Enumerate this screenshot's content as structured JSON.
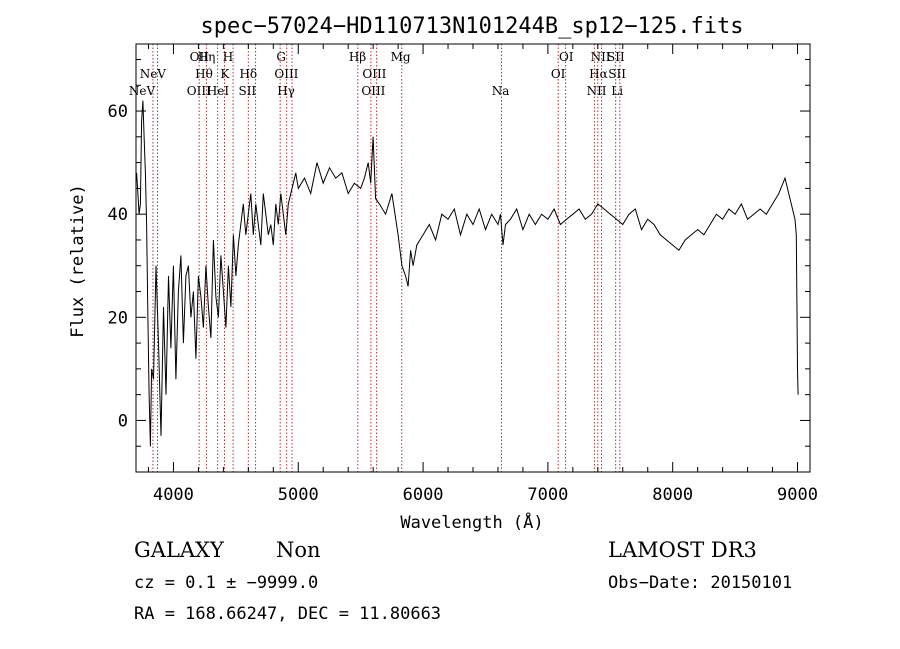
{
  "chart_data": {
    "type": "line",
    "title": "spec−57024−HD110713N101244B_sp12−125.fits",
    "xlabel": "Wavelength (Å)",
    "ylabel": "Flux (relative)",
    "xlim": [
      3700,
      9100
    ],
    "ylim": [
      -10,
      73
    ],
    "x_ticks": [
      4000,
      5000,
      6000,
      7000,
      8000,
      9000
    ],
    "y_ticks": [
      0,
      20,
      40,
      60
    ],
    "grid": false,
    "line_color": "#000000",
    "marker_color": "#b03030",
    "spectral_lines": [
      {
        "label": "NeV",
        "x": 3426,
        "row": 2
      },
      {
        "label": "NeV",
        "x": 3835,
        "row": 1
      },
      {
        "label": "OII",
        "x": 4207,
        "row": 0
      },
      {
        "label": "Hη",
        "x": 4265,
        "row": 0
      },
      {
        "label": "H",
        "x": 4437,
        "row": 0
      },
      {
        "label": "Hθ",
        "x": 4245,
        "row": 1
      },
      {
        "label": "K",
        "x": 4412,
        "row": 1
      },
      {
        "label": "OIII",
        "x": 4203,
        "row": 2
      },
      {
        "label": "HeI",
        "x": 4357,
        "row": 2
      },
      {
        "label": "Hδ",
        "x": 4600,
        "row": 1
      },
      {
        "label": "SII",
        "x": 4592,
        "row": 2
      },
      {
        "label": "G",
        "x": 4863,
        "row": 0
      },
      {
        "label": "OIII",
        "x": 4905,
        "row": 1
      },
      {
        "label": "Hγ",
        "x": 4902,
        "row": 2
      },
      {
        "label": "Hβ",
        "x": 5475,
        "row": 0
      },
      {
        "label": "OIII",
        "x": 5610,
        "row": 1
      },
      {
        "label": "OIII",
        "x": 5602,
        "row": 2
      },
      {
        "label": "Mg",
        "x": 5820,
        "row": 0
      },
      {
        "label": "Na",
        "x": 6621,
        "row": 2
      },
      {
        "label": "OI",
        "x": 7147,
        "row": 0
      },
      {
        "label": "OI",
        "x": 7082,
        "row": 1
      },
      {
        "label": "NII",
        "x": 7422,
        "row": 0
      },
      {
        "label": "SII",
        "x": 7545,
        "row": 0
      },
      {
        "label": "Hα",
        "x": 7405,
        "row": 1
      },
      {
        "label": "SII",
        "x": 7555,
        "row": 1
      },
      {
        "label": "NII",
        "x": 7390,
        "row": 2
      },
      {
        "label": "Li",
        "x": 7555,
        "row": 2
      }
    ],
    "marker_lines_x": [
      3836,
      3872,
      4206,
      4264,
      4354,
      4409,
      4478,
      4600,
      4658,
      4855,
      4907,
      4950,
      5477,
      5582,
      5628,
      5829,
      6628,
      7083,
      7142,
      7374,
      7400,
      7430,
      7543,
      7576
    ],
    "spectrum": {
      "x": [
        3705,
        3715,
        3725,
        3735,
        3745,
        3755,
        3765,
        3775,
        3785,
        3795,
        3805,
        3815,
        3825,
        3840,
        3860,
        3880,
        3900,
        3920,
        3940,
        3960,
        3980,
        4000,
        4020,
        4040,
        4060,
        4080,
        4100,
        4120,
        4140,
        4160,
        4180,
        4200,
        4220,
        4240,
        4260,
        4280,
        4300,
        4320,
        4340,
        4360,
        4380,
        4400,
        4420,
        4440,
        4460,
        4480,
        4500,
        4520,
        4540,
        4560,
        4580,
        4600,
        4620,
        4640,
        4660,
        4680,
        4700,
        4720,
        4740,
        4760,
        4780,
        4800,
        4820,
        4840,
        4860,
        4880,
        4900,
        4920,
        4940,
        4960,
        4980,
        5000,
        5050,
        5100,
        5150,
        5200,
        5250,
        5300,
        5350,
        5400,
        5450,
        5500,
        5530,
        5560,
        5580,
        5600,
        5620,
        5650,
        5700,
        5750,
        5800,
        5830,
        5860,
        5880,
        5900,
        5920,
        5950,
        6000,
        6050,
        6100,
        6150,
        6200,
        6250,
        6300,
        6350,
        6400,
        6450,
        6500,
        6550,
        6600,
        6620,
        6640,
        6660,
        6700,
        6750,
        6800,
        6850,
        6900,
        6950,
        7000,
        7050,
        7100,
        7150,
        7200,
        7250,
        7300,
        7350,
        7400,
        7450,
        7500,
        7550,
        7600,
        7650,
        7700,
        7750,
        7800,
        7850,
        7900,
        7950,
        8000,
        8050,
        8100,
        8150,
        8200,
        8250,
        8300,
        8350,
        8400,
        8450,
        8500,
        8550,
        8600,
        8650,
        8700,
        8750,
        8800,
        8850,
        8900,
        8920,
        8940,
        8960,
        8980,
        8990,
        9000,
        9005
      ],
      "y": [
        48,
        44,
        40,
        42,
        58,
        62,
        55,
        48,
        38,
        20,
        5,
        -5,
        10,
        8,
        30,
        15,
        -3,
        22,
        5,
        28,
        14,
        30,
        8,
        25,
        32,
        15,
        28,
        30,
        20,
        25,
        12,
        28,
        24,
        18,
        30,
        22,
        16,
        35,
        24,
        20,
        32,
        25,
        18,
        30,
        22,
        36,
        28,
        34,
        38,
        42,
        36,
        40,
        44,
        36,
        42,
        38,
        34,
        44,
        40,
        36,
        38,
        34,
        42,
        38,
        44,
        40,
        36,
        42,
        44,
        46,
        48,
        45,
        47,
        44,
        50,
        46,
        49,
        47,
        48,
        44,
        46,
        45,
        47,
        50,
        46,
        55,
        43,
        42,
        40,
        44,
        36,
        30,
        28,
        26,
        33,
        30,
        34,
        36,
        38,
        35,
        40,
        39,
        41,
        36,
        40,
        38,
        41,
        37,
        40,
        38,
        40,
        34,
        38,
        39,
        41,
        37,
        40,
        38,
        40,
        39,
        41,
        38,
        39,
        40,
        41,
        39,
        40,
        42,
        41,
        40,
        39,
        38,
        40,
        41,
        37,
        39,
        38,
        36,
        35,
        34,
        33,
        35,
        36,
        37,
        36,
        38,
        40,
        39,
        41,
        40,
        42,
        39,
        40,
        41,
        40,
        42,
        44,
        47,
        45,
        43,
        41,
        39,
        36,
        10,
        5
      ]
    }
  },
  "footer": {
    "class_label": "GALAXY",
    "subclass_label": "Non",
    "cz_text": "cz = 0.1 ± −9999.0",
    "radec_text": "RA = 168.66247, DEC =  11.80663",
    "survey_label": "LAMOST DR3",
    "obs_date_text": "Obs−Date: 20150101"
  }
}
